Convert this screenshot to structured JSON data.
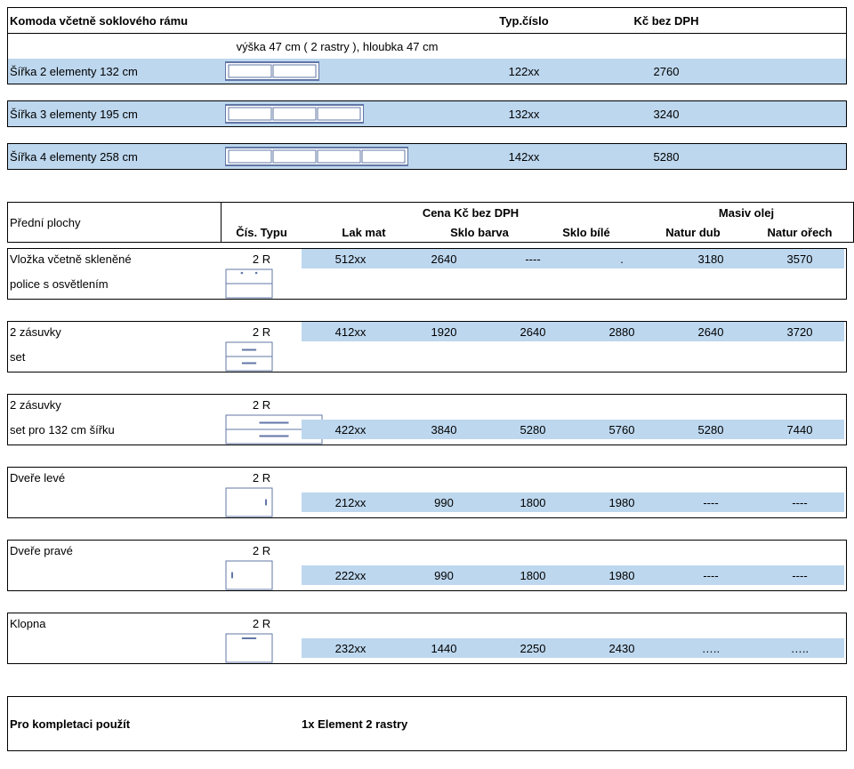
{
  "colors": {
    "stripe": "#bdd7ee",
    "border": "#000000",
    "text": "#000000",
    "bg": "#ffffff",
    "rail_outer": "#6177a6",
    "rail_inner": "#ffffff"
  },
  "header": {
    "title": "Komoda včetně soklového rámu",
    "typ_cislo": "Typ.číslo",
    "kc_bez_dph": "Kč bez DPH",
    "sub_label": "výška 47 cm ( 2 rastry ), hloubka 47 cm"
  },
  "width_rows": [
    {
      "label": "Šířka 2 elementy 132 cm",
      "code": "122xx",
      "price": "2760",
      "elements": 2
    },
    {
      "label": "Šířka 3 elementy 195 cm",
      "code": "132xx",
      "price": "3240",
      "elements": 3
    },
    {
      "label": "Šířka 4 elementy 258 cm",
      "code": "142xx",
      "price": "5280",
      "elements": 4
    }
  ],
  "price_header": {
    "left_label": "Přední plochy",
    "cena_label": "Cena Kč bez DPH",
    "cis_typu": "Čís. Typu",
    "lak_mat": "Lak mat",
    "sklo_barva": "Sklo barva",
    "sklo_bile": "Sklo bílé",
    "masiv_olej": "Masiv olej",
    "natur_dub": "Natur dub",
    "natur_orech": "Natur ořech"
  },
  "products": [
    {
      "name_line1": "Vložka včetně skleněné",
      "name_line2": "police s osvětlením",
      "rastry": "2 R",
      "code": "512xx",
      "lak_mat": "2640",
      "sklo_barva": "----",
      "sklo_bile": ".",
      "natur_dub": "3180",
      "natur_orech": "3570",
      "icon": "shelf"
    },
    {
      "name_line1": "2 zásuvky",
      "name_line2": "set",
      "rastry": "2 R",
      "code": "412xx",
      "lak_mat": "1920",
      "sklo_barva": "2640",
      "sklo_bile": "2880",
      "natur_dub": "2640",
      "natur_orech": "3720",
      "icon": "drawers"
    },
    {
      "name_line1": "2 zásuvky",
      "name_line2": "set pro 132 cm šířku",
      "rastry": "2 R",
      "code": "422xx",
      "lak_mat": "3840",
      "sklo_barva": "5280",
      "sklo_bile": "5760",
      "natur_dub": "5280",
      "natur_orech": "7440",
      "icon": "drawers_wide",
      "stripe_on_line2": true
    },
    {
      "name_line1": "Dveře levé",
      "rastry": "2 R",
      "code": "212xx",
      "lak_mat": "990",
      "sklo_barva": "1800",
      "sklo_bile": "1980",
      "natur_dub": "----",
      "natur_orech": "----",
      "icon": "door_left"
    },
    {
      "name_line1": "Dveře pravé",
      "rastry": "2 R",
      "code": "222xx",
      "lak_mat": "990",
      "sklo_barva": "1800",
      "sklo_bile": "1980",
      "natur_dub": "----",
      "natur_orech": "----",
      "icon": "door_right"
    },
    {
      "name_line1": "Klopna",
      "rastry": "2 R",
      "code": "232xx",
      "lak_mat": "1440",
      "sklo_barva": "2250",
      "sklo_bile": "2430",
      "natur_dub": "…..",
      "natur_orech": "…..",
      "icon": "flap"
    }
  ],
  "footer": {
    "label": "Pro kompletaci použít",
    "value": "1x Element 2 rastry"
  }
}
